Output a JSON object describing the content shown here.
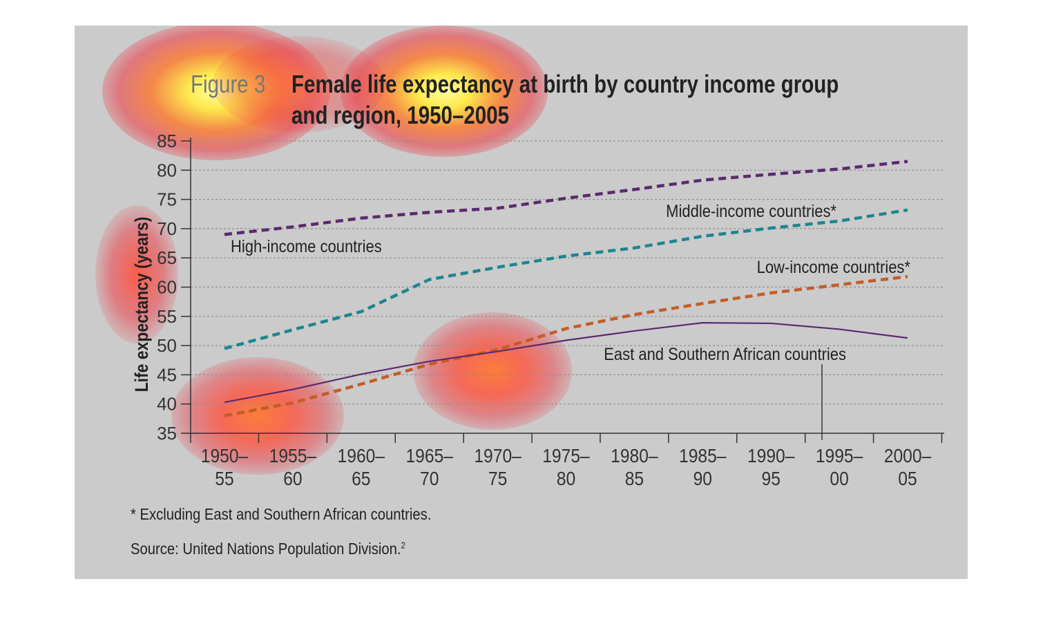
{
  "figure_label": "Figure 3",
  "title_line1": "Female life expectancy at birth by country income group",
  "title_line2": "and region, 1950–2005",
  "footnote": "* Excluding East and Southern African countries.",
  "source": "Source: United Nations Population Division.",
  "source_sup": "2",
  "colors": {
    "background": "#cbcbcb",
    "high_income": "#5b2a6e",
    "middle_income": "#1d8590",
    "low_income": "#c45c28",
    "east_southern_africa": "#5b2a6e",
    "gridline": "#8e8e8e",
    "axis": "#333333"
  },
  "chart_data": {
    "type": "line",
    "title": "Female life expectancy at birth by country income group and region, 1950–2005",
    "ylabel": "Life expectancy (years)",
    "xlabel": "",
    "ylim": [
      35,
      85
    ],
    "yticks": [
      "35",
      "40",
      "45",
      "50",
      "55",
      "60",
      "65",
      "70",
      "75",
      "80",
      "85"
    ],
    "grid": true,
    "categories": [
      [
        "1950–",
        "55"
      ],
      [
        "1955–",
        "60"
      ],
      [
        "1960–",
        "65"
      ],
      [
        "1965–",
        "70"
      ],
      [
        "1970–",
        "75"
      ],
      [
        "1975–",
        "80"
      ],
      [
        "1980–",
        "85"
      ],
      [
        "1985–",
        "90"
      ],
      [
        "1990–",
        "95"
      ],
      [
        "1995–",
        "00"
      ],
      [
        "2000–",
        "05"
      ]
    ],
    "series": [
      {
        "name": "High-income countries",
        "style": "dashed",
        "color_key": "high_income",
        "values": [
          69,
          70.3,
          71.8,
          72.8,
          73.5,
          75.2,
          76.7,
          78.3,
          79.3,
          80.2,
          81.5
        ]
      },
      {
        "name": "Middle-income countries*",
        "style": "dashed",
        "color_key": "middle_income",
        "values": [
          49.5,
          52.7,
          55.8,
          61.3,
          63.4,
          65.3,
          66.7,
          68.7,
          70.1,
          71.3,
          73.2
        ]
      },
      {
        "name": "Low-income countries*",
        "style": "dashed",
        "color_key": "low_income",
        "values": [
          38,
          40.2,
          43.4,
          46.8,
          49.3,
          52.9,
          55.3,
          57.2,
          59,
          60.4,
          61.8
        ]
      },
      {
        "name": "East and Southern African countries",
        "style": "solid",
        "color_key": "east_southern_africa",
        "values": [
          40.3,
          42.5,
          45.1,
          47.3,
          49,
          50.9,
          52.5,
          53.9,
          53.8,
          52.8,
          51.3
        ]
      }
    ]
  }
}
